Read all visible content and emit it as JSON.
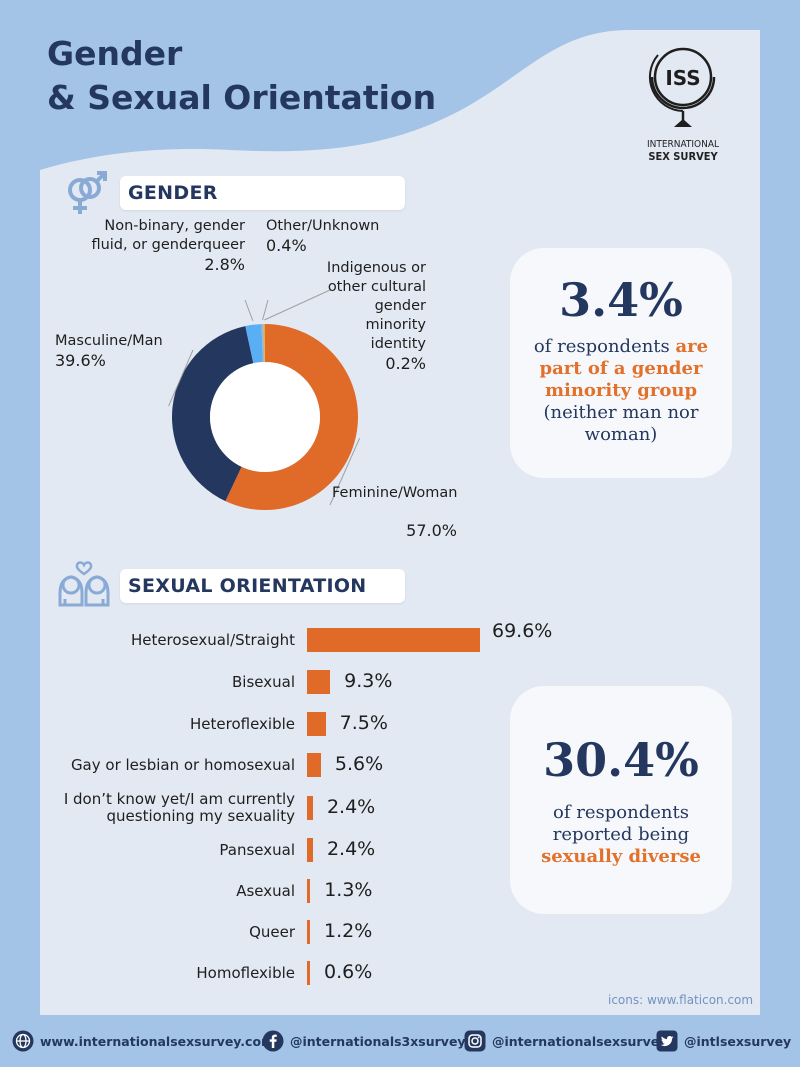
{
  "title": {
    "line1": "Gender",
    "line2": "& Sexual Orientation"
  },
  "logo": {
    "mark": "ISS",
    "line1": "INTERNATIONAL",
    "line2": "SEX SURVEY"
  },
  "gender_section": {
    "heading": "GENDER"
  },
  "orientation_section": {
    "heading": "SEXUAL ORIENTATION"
  },
  "callout_gender": {
    "value": "3.4%",
    "pre": "of respondents ",
    "highlight": "are part of a gender minority group",
    "post": "(neither man nor woman)"
  },
  "callout_orientation": {
    "value": "30.4%",
    "pre": "of respondents reported being ",
    "highlight": "sexually diverse"
  },
  "credit": "icons: www.flaticon.com",
  "footer": {
    "website": "www.internationalsexsurvey.com",
    "facebook": "@internationals3xsurvey",
    "instagram": "@internationalsexsurvey",
    "twitter": "@intlsexsurvey"
  },
  "colors": {
    "navy": "#24375f",
    "orange": "#e2712b",
    "light_blue": "#5aaef3",
    "gray": "#b3b3b3"
  },
  "chart_data": [
    {
      "type": "pie",
      "title": "GENDER",
      "categories": [
        "Feminine/Woman",
        "Masculine/Man",
        "Non-binary, gender fluid, or genderqueer",
        "Other/Unknown",
        "Indigenous or other cultural gender minority identity"
      ],
      "values": [
        57.0,
        39.6,
        2.8,
        0.4,
        0.2
      ],
      "value_labels": [
        "57.0%",
        "39.6%",
        "2.8%",
        "0.4%",
        "0.2%"
      ],
      "label_lines": [
        [
          "Feminine/Woman"
        ],
        [
          "Masculine/Man"
        ],
        [
          "Non-binary, gender",
          "fluid, or genderqueer"
        ],
        [
          "Other/Unknown"
        ],
        [
          "Indigenous or",
          "other cultural",
          "gender",
          "minority",
          "identity"
        ]
      ],
      "colors": [
        "#e06a27",
        "#24375f",
        "#5aaef3",
        "#b3b3b3",
        "#e0b23b"
      ]
    },
    {
      "type": "bar",
      "title": "SEXUAL ORIENTATION",
      "orientation": "horizontal",
      "categories": [
        "Heterosexual/Straight",
        "Bisexual",
        "Heteroflexible",
        "Gay or lesbian or homosexual",
        "I don’t know yet/I am currently questioning my sexuality",
        "Pansexual",
        "Asexual",
        "Queer",
        "Homoflexible"
      ],
      "category_lines": [
        [
          "Heterosexual/Straight"
        ],
        [
          "Bisexual"
        ],
        [
          "Heteroflexible"
        ],
        [
          "Gay or lesbian or homosexual"
        ],
        [
          "I don’t know yet/I am currently",
          "questioning my sexuality"
        ],
        [
          "Pansexual"
        ],
        [
          "Asexual"
        ],
        [
          "Queer"
        ],
        [
          "Homoflexible"
        ]
      ],
      "values": [
        69.6,
        9.3,
        7.5,
        5.6,
        2.4,
        2.4,
        1.3,
        1.2,
        0.6
      ],
      "value_labels": [
        "69.6%",
        "9.3%",
        "7.5%",
        "5.6%",
        "2.4%",
        "2.4%",
        "1.3%",
        "1.2%",
        "0.6%"
      ],
      "xlim": [
        0,
        69.6
      ],
      "color": "#e06a27"
    }
  ]
}
